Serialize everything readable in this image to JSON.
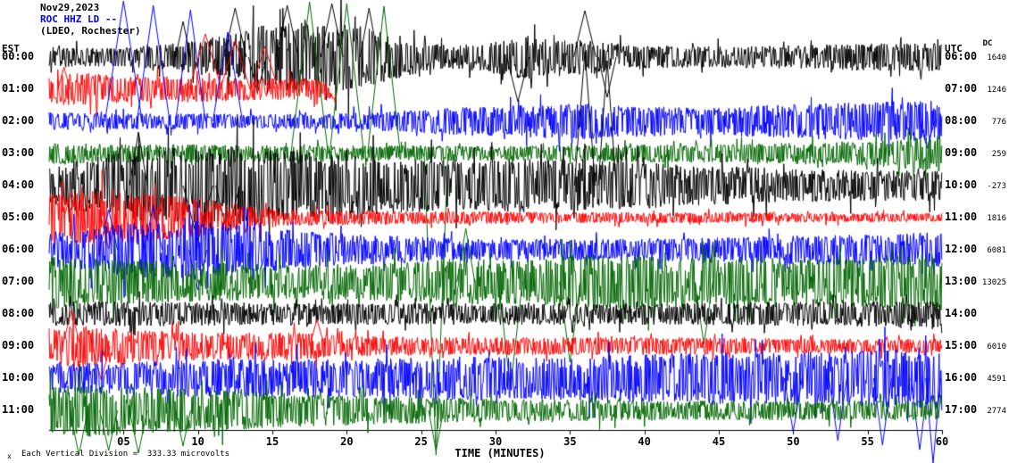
{
  "header": {
    "date": "Nov29,2023",
    "station": "ROC HHZ LD --",
    "location": "(LDEO, Rochester)"
  },
  "axes": {
    "left_label": "EST",
    "right_label": "UTC",
    "dc_label": "DC",
    "x_ticks": [
      "05",
      "10",
      "15",
      "20",
      "25",
      "30",
      "35",
      "40",
      "45",
      "50",
      "55",
      "60"
    ],
    "x_title": "TIME (MINUTES)"
  },
  "footer": {
    "marker": "x",
    "text": "Each Vertical Division =  333.33 microvolts"
  },
  "chart_data": {
    "type": "line",
    "subtype": "helicorder-seismogram",
    "x_unit": "minutes",
    "x_range": [
      0,
      60
    ],
    "minutes_per_row": 60,
    "vertical_division_microvolts": 333.33,
    "trace_color_cycle": [
      "#000000",
      "#ff0000",
      "#0000ff",
      "#006600"
    ],
    "rows": [
      {
        "est": "00:00",
        "utc": "06:00",
        "dc": "1640",
        "color": "#000000",
        "env": [
          [
            0,
            12
          ],
          [
            4,
            10
          ],
          [
            8,
            14
          ],
          [
            12,
            25
          ],
          [
            14,
            35
          ],
          [
            18,
            40
          ],
          [
            21,
            35
          ],
          [
            24,
            22
          ],
          [
            27,
            12
          ],
          [
            30,
            18
          ],
          [
            32,
            25
          ],
          [
            34,
            18
          ],
          [
            36,
            20
          ],
          [
            39,
            14
          ],
          [
            42,
            12
          ],
          [
            46,
            12
          ],
          [
            50,
            13
          ],
          [
            54,
            15
          ],
          [
            60,
            16
          ]
        ],
        "spikes": [
          {
            "m": 9,
            "dy": 40,
            "w": 1
          },
          {
            "m": 12.5,
            "dy": 55,
            "w": 1.5
          },
          {
            "m": 14,
            "dy": -40,
            "w": 1.2
          },
          {
            "m": 16,
            "dy": 58,
            "w": 1.5
          },
          {
            "m": 19,
            "dy": 60,
            "w": 1.5
          },
          {
            "m": 21.5,
            "dy": 55,
            "w": 1.2
          },
          {
            "m": 31.5,
            "dy": -50,
            "w": 1.5
          },
          {
            "m": 36,
            "dy": 52,
            "w": 1.5
          },
          {
            "m": 37.5,
            "dy": -45,
            "w": 1.2
          }
        ]
      },
      {
        "est": "01:00",
        "utc": "07:00",
        "dc": "1246",
        "color": "#ff0000",
        "end": 19.3,
        "env": [
          [
            0,
            15
          ],
          [
            2,
            20
          ],
          [
            4,
            16
          ],
          [
            7,
            14
          ],
          [
            10,
            15
          ],
          [
            13,
            13
          ],
          [
            16,
            12
          ],
          [
            19,
            12
          ]
        ],
        "spikes": [
          {
            "m": 1,
            "dy": 25,
            "w": 0.8
          },
          {
            "m": 10.5,
            "dy": 62,
            "w": 2.2
          },
          {
            "m": 12.5,
            "dy": 55,
            "w": 2
          },
          {
            "m": 14.5,
            "dy": 48,
            "w": 1.8
          }
        ]
      },
      {
        "est": "02:00",
        "utc": "08:00",
        "dc": "776",
        "color": "#0000ff",
        "env": [
          [
            0,
            10
          ],
          [
            5,
            9
          ],
          [
            10,
            9
          ],
          [
            15,
            8
          ],
          [
            20,
            9
          ],
          [
            24,
            12
          ],
          [
            28,
            16
          ],
          [
            32,
            18
          ],
          [
            36,
            20
          ],
          [
            40,
            17
          ],
          [
            44,
            15
          ],
          [
            48,
            18
          ],
          [
            52,
            20
          ],
          [
            56,
            22
          ],
          [
            60,
            24
          ]
        ],
        "spikes": [
          {
            "m": 5,
            "dy": 135,
            "w": 2.5
          },
          {
            "m": 7,
            "dy": 130,
            "w": 2.2
          },
          {
            "m": 9.5,
            "dy": 125,
            "w": 2
          },
          {
            "m": 12,
            "dy": 100,
            "w": 2
          },
          {
            "m": 59,
            "dy": -30,
            "w": 1
          }
        ]
      },
      {
        "est": "03:00",
        "utc": "09:00",
        "dc": "259",
        "color": "#006600",
        "env": [
          [
            0,
            12
          ],
          [
            5,
            10
          ],
          [
            10,
            10
          ],
          [
            15,
            9
          ],
          [
            20,
            9
          ],
          [
            25,
            9
          ],
          [
            30,
            8
          ],
          [
            35,
            9
          ],
          [
            40,
            10
          ],
          [
            45,
            10
          ],
          [
            50,
            12
          ],
          [
            55,
            14
          ],
          [
            58,
            18
          ],
          [
            60,
            22
          ]
        ],
        "spikes": [
          {
            "m": 17.5,
            "dy": 170,
            "w": 2.5
          },
          {
            "m": 20,
            "dy": 168,
            "w": 2.3
          },
          {
            "m": 22.5,
            "dy": 165,
            "w": 2.2
          },
          {
            "m": 26,
            "dy": -338,
            "w": 1.6
          }
        ]
      },
      {
        "est": "04:00",
        "utc": "10:00",
        "dc": "-273",
        "color": "#000000",
        "env": [
          [
            0,
            22
          ],
          [
            2,
            30
          ],
          [
            5,
            38
          ],
          [
            8,
            42
          ],
          [
            11,
            45
          ],
          [
            14,
            42
          ],
          [
            17,
            38
          ],
          [
            20,
            34
          ],
          [
            24,
            30
          ],
          [
            28,
            28
          ],
          [
            32,
            30
          ],
          [
            36,
            28
          ],
          [
            40,
            26
          ],
          [
            44,
            22
          ],
          [
            48,
            20
          ],
          [
            52,
            18
          ],
          [
            56,
            17
          ],
          [
            60,
            17
          ]
        ],
        "spikes": [
          {
            "m": 6,
            "dy": 60,
            "w": 1.2
          },
          {
            "m": 10,
            "dy": -62,
            "w": 2
          },
          {
            "m": 12,
            "dy": -55,
            "w": 1.6
          },
          {
            "m": 36,
            "dy": 150,
            "w": 1.4
          },
          {
            "m": 37.5,
            "dy": 140,
            "w": 1.2
          }
        ]
      },
      {
        "est": "05:00",
        "utc": "11:00",
        "dc": "1816",
        "color": "#ff0000",
        "env": [
          [
            0,
            26
          ],
          [
            3,
            30
          ],
          [
            6,
            28
          ],
          [
            9,
            24
          ],
          [
            12,
            18
          ],
          [
            14,
            12
          ],
          [
            17,
            9
          ],
          [
            20,
            8
          ],
          [
            25,
            7
          ],
          [
            30,
            7
          ],
          [
            35,
            6
          ],
          [
            40,
            6
          ],
          [
            45,
            6
          ],
          [
            50,
            5
          ],
          [
            60,
            5
          ]
        ],
        "spikes": [
          {
            "m": 1.5,
            "dy": 30,
            "w": 1
          },
          {
            "m": 4,
            "dy": -35,
            "w": 1
          }
        ]
      },
      {
        "est": "06:00",
        "utc": "12:00",
        "dc": "6081",
        "color": "#0000ff",
        "env": [
          [
            0,
            20
          ],
          [
            3,
            26
          ],
          [
            6,
            32
          ],
          [
            9,
            34
          ],
          [
            12,
            30
          ],
          [
            15,
            24
          ],
          [
            18,
            20
          ],
          [
            21,
            17
          ],
          [
            24,
            15
          ],
          [
            27,
            13
          ],
          [
            30,
            12
          ],
          [
            34,
            12
          ],
          [
            38,
            12
          ],
          [
            42,
            13
          ],
          [
            46,
            14
          ],
          [
            50,
            16
          ],
          [
            54,
            17
          ],
          [
            57,
            18
          ],
          [
            60,
            20
          ]
        ],
        "spikes": [
          {
            "m": 4,
            "dy": 45,
            "w": 1.2
          },
          {
            "m": 7,
            "dy": 50,
            "w": 1.2
          },
          {
            "m": 10,
            "dy": -45,
            "w": 1.2
          }
        ]
      },
      {
        "est": "07:00",
        "utc": "13:00",
        "dc": "13025",
        "color": "#006600",
        "env": [
          [
            0,
            30
          ],
          [
            4,
            26
          ],
          [
            8,
            23
          ],
          [
            12,
            21
          ],
          [
            16,
            19
          ],
          [
            20,
            20
          ],
          [
            24,
            22
          ],
          [
            27,
            28
          ],
          [
            30,
            24
          ],
          [
            33,
            26
          ],
          [
            36,
            30
          ],
          [
            39,
            32
          ],
          [
            42,
            28
          ],
          [
            45,
            26
          ],
          [
            48,
            28
          ],
          [
            51,
            26
          ],
          [
            54,
            28
          ],
          [
            57,
            30
          ],
          [
            60,
            32
          ]
        ],
        "spikes": [
          {
            "m": 28,
            "dy": 60,
            "w": 1.2
          },
          {
            "m": 31,
            "dy": -120,
            "w": 1.6
          },
          {
            "m": 35,
            "dy": -90,
            "w": 1.4
          },
          {
            "m": 44,
            "dy": -70,
            "w": 1.2
          }
        ]
      },
      {
        "est": "08:00",
        "utc": "14:00",
        "dc": "",
        "color": "#000000",
        "env": [
          [
            0,
            13
          ],
          [
            6,
            14
          ],
          [
            12,
            13
          ],
          [
            18,
            12
          ],
          [
            24,
            12
          ],
          [
            30,
            12
          ],
          [
            36,
            12
          ],
          [
            42,
            12
          ],
          [
            48,
            13
          ],
          [
            54,
            14
          ],
          [
            60,
            15
          ]
        ],
        "spikes": []
      },
      {
        "est": "09:00",
        "utc": "15:00",
        "dc": "6010",
        "color": "#ff0000",
        "env": [
          [
            0,
            20
          ],
          [
            2,
            24
          ],
          [
            4,
            20
          ],
          [
            7,
            17
          ],
          [
            10,
            16
          ],
          [
            13,
            15
          ],
          [
            16,
            16
          ],
          [
            19,
            13
          ],
          [
            22,
            11
          ],
          [
            26,
            10
          ],
          [
            30,
            10
          ],
          [
            34,
            10
          ],
          [
            38,
            10
          ],
          [
            42,
            10
          ],
          [
            46,
            9
          ],
          [
            50,
            8
          ],
          [
            60,
            8
          ]
        ],
        "spikes": [
          {
            "m": 1.5,
            "dy": 40,
            "w": 1.2
          },
          {
            "m": 3.5,
            "dy": -38,
            "w": 1.2
          },
          {
            "m": 18,
            "dy": 30,
            "w": 1
          }
        ]
      },
      {
        "est": "10:00",
        "utc": "16:00",
        "dc": "4591",
        "color": "#0000ff",
        "env": [
          [
            0,
            16
          ],
          [
            4,
            18
          ],
          [
            8,
            20
          ],
          [
            12,
            22
          ],
          [
            16,
            21
          ],
          [
            20,
            21
          ],
          [
            24,
            23
          ],
          [
            28,
            25
          ],
          [
            32,
            23
          ],
          [
            36,
            25
          ],
          [
            40,
            27
          ],
          [
            44,
            29
          ],
          [
            48,
            28
          ],
          [
            52,
            30
          ],
          [
            56,
            32
          ],
          [
            60,
            36
          ]
        ],
        "spikes": [
          {
            "m": 50,
            "dy": -60,
            "w": 1.2
          },
          {
            "m": 53,
            "dy": -70,
            "w": 1.2
          },
          {
            "m": 56,
            "dy": -75,
            "w": 1.2
          },
          {
            "m": 58.5,
            "dy": -80,
            "w": 1.2
          },
          {
            "m": 59.4,
            "dy": -95,
            "w": 1
          }
        ]
      },
      {
        "est": "11:00",
        "utc": "17:00",
        "dc": "2774",
        "color": "#006600",
        "env": [
          [
            0,
            26
          ],
          [
            3,
            30
          ],
          [
            6,
            27
          ],
          [
            9,
            24
          ],
          [
            12,
            22
          ],
          [
            15,
            20
          ],
          [
            18,
            18
          ],
          [
            21,
            16
          ],
          [
            24,
            15
          ],
          [
            27,
            14
          ],
          [
            30,
            13
          ],
          [
            34,
            12
          ],
          [
            38,
            12
          ],
          [
            42,
            11
          ],
          [
            46,
            11
          ],
          [
            50,
            11
          ],
          [
            60,
            11
          ]
        ],
        "spikes": [
          {
            "m": 2,
            "dy": -50,
            "w": 1.2
          },
          {
            "m": 4,
            "dy": -45,
            "w": 1.2
          },
          {
            "m": 6,
            "dy": -48,
            "w": 1.2
          },
          {
            "m": 9,
            "dy": -40,
            "w": 1
          },
          {
            "m": 26,
            "dy": -45,
            "w": 1
          }
        ]
      }
    ]
  }
}
